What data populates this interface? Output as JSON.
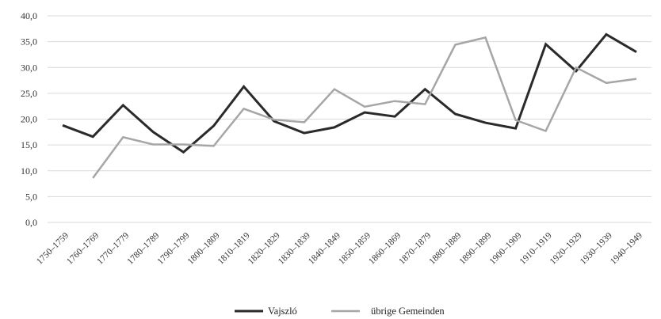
{
  "chart_data": {
    "type": "line",
    "title": "",
    "xlabel": "",
    "ylabel": "",
    "ylim": [
      0,
      40
    ],
    "yticks": [
      "0,0",
      "5,0",
      "10,0",
      "15,0",
      "20,0",
      "25,0",
      "30,0",
      "35,0",
      "40,0"
    ],
    "categories": [
      "1750–1759",
      "1760–1769",
      "1770–1779",
      "1780–1789",
      "1790–1799",
      "1800–1809",
      "1810–1819",
      "1820–1829",
      "1830–1839",
      "1840–1849",
      "1850–1859",
      "1860–1869",
      "1870–1879",
      "1880–1889",
      "1890–1899",
      "1900–1909",
      "1910–1919",
      "1920–1929",
      "1930–1939",
      "1940–1949"
    ],
    "grid": "horizontal",
    "legend_position": "bottom",
    "series": [
      {
        "name": "Vajszló",
        "color": "#2a2a2a",
        "values": [
          18.8,
          16.6,
          22.7,
          17.5,
          13.6,
          18.7,
          26.3,
          19.6,
          17.3,
          18.4,
          21.3,
          20.5,
          25.8,
          21.0,
          19.3,
          18.2,
          34.5,
          29.3,
          36.4,
          33.0
        ]
      },
      {
        "name": "übrige Gemeinden",
        "color": "#a6a6a6",
        "values": [
          null,
          8.6,
          16.5,
          15.1,
          15.1,
          14.8,
          22.0,
          19.9,
          19.4,
          25.8,
          22.4,
          23.5,
          22.9,
          34.4,
          35.8,
          19.8,
          17.7,
          30.0,
          27.0,
          27.8
        ]
      }
    ]
  }
}
